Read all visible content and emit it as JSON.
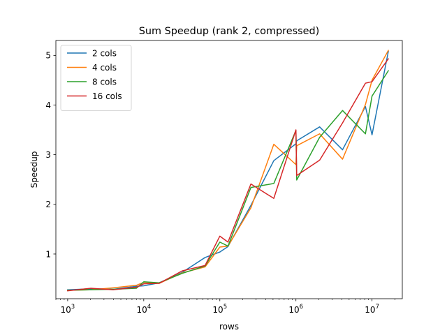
{
  "chart_data": {
    "type": "line",
    "title": "Sum Speedup (rank 2, compressed)",
    "xlabel": "rows",
    "ylabel": "Speedup",
    "xscale": "log",
    "xlim": [
      700,
      25000000
    ],
    "ylim": [
      0.1,
      5.3
    ],
    "x_ticks": [
      {
        "value": 1000,
        "base": "10",
        "exp": "3"
      },
      {
        "value": 10000,
        "base": "10",
        "exp": "4"
      },
      {
        "value": 100000,
        "base": "10",
        "exp": "5"
      },
      {
        "value": 1000000,
        "base": "10",
        "exp": "6"
      },
      {
        "value": 10000000,
        "base": "10",
        "exp": "7"
      }
    ],
    "y_ticks": [
      1,
      2,
      3,
      4,
      5
    ],
    "grid": false,
    "legend_position": "top-left",
    "series": [
      {
        "name": "2 cols",
        "color": "#1f77b4",
        "points": [
          [
            1000,
            0.28
          ],
          [
            2000,
            0.3
          ],
          [
            4000,
            0.29
          ],
          [
            8000,
            0.35
          ],
          [
            10000,
            0.36
          ],
          [
            16000,
            0.42
          ],
          [
            32000,
            0.63
          ],
          [
            64000,
            0.93
          ],
          [
            100000,
            1.04
          ],
          [
            128000,
            1.15
          ],
          [
            256000,
            1.98
          ],
          [
            512000,
            2.88
          ],
          [
            1000000,
            3.22
          ],
          [
            1024000,
            3.28
          ],
          [
            2048000,
            3.56
          ],
          [
            4096000,
            3.1
          ],
          [
            8192000,
            3.97
          ],
          [
            10000000,
            3.4
          ],
          [
            16384000,
            5.08
          ]
        ]
      },
      {
        "name": "4 cols",
        "color": "#ff7f0e",
        "points": [
          [
            1000,
            0.27
          ],
          [
            2000,
            0.28
          ],
          [
            4000,
            0.32
          ],
          [
            8000,
            0.37
          ],
          [
            10000,
            0.43
          ],
          [
            16000,
            0.41
          ],
          [
            32000,
            0.62
          ],
          [
            64000,
            0.74
          ],
          [
            100000,
            1.14
          ],
          [
            128000,
            1.16
          ],
          [
            256000,
            1.93
          ],
          [
            512000,
            3.21
          ],
          [
            1000000,
            2.8
          ],
          [
            1024000,
            3.18
          ],
          [
            2048000,
            3.42
          ],
          [
            4096000,
            2.91
          ],
          [
            8192000,
            4.01
          ],
          [
            10000000,
            4.5
          ],
          [
            16384000,
            5.1
          ]
        ]
      },
      {
        "name": "8 cols",
        "color": "#2ca02c",
        "points": [
          [
            1000,
            0.27
          ],
          [
            2000,
            0.28
          ],
          [
            4000,
            0.29
          ],
          [
            8000,
            0.31
          ],
          [
            10000,
            0.44
          ],
          [
            16000,
            0.42
          ],
          [
            32000,
            0.61
          ],
          [
            64000,
            0.76
          ],
          [
            100000,
            1.24
          ],
          [
            128000,
            1.16
          ],
          [
            256000,
            2.34
          ],
          [
            512000,
            2.42
          ],
          [
            1000000,
            3.49
          ],
          [
            1024000,
            2.49
          ],
          [
            2048000,
            3.35
          ],
          [
            4096000,
            3.89
          ],
          [
            8192000,
            3.42
          ],
          [
            10000000,
            4.18
          ],
          [
            16384000,
            4.69
          ]
        ]
      },
      {
        "name": "16 cols",
        "color": "#d62728",
        "points": [
          [
            1000,
            0.26
          ],
          [
            2000,
            0.31
          ],
          [
            4000,
            0.28
          ],
          [
            8000,
            0.33
          ],
          [
            10000,
            0.4
          ],
          [
            16000,
            0.41
          ],
          [
            32000,
            0.66
          ],
          [
            64000,
            0.77
          ],
          [
            100000,
            1.36
          ],
          [
            128000,
            1.24
          ],
          [
            256000,
            2.41
          ],
          [
            512000,
            2.12
          ],
          [
            1000000,
            3.5
          ],
          [
            1024000,
            2.58
          ],
          [
            2048000,
            2.89
          ],
          [
            4096000,
            3.64
          ],
          [
            8192000,
            4.44
          ],
          [
            10000000,
            4.47
          ],
          [
            16384000,
            4.93
          ]
        ]
      }
    ]
  }
}
